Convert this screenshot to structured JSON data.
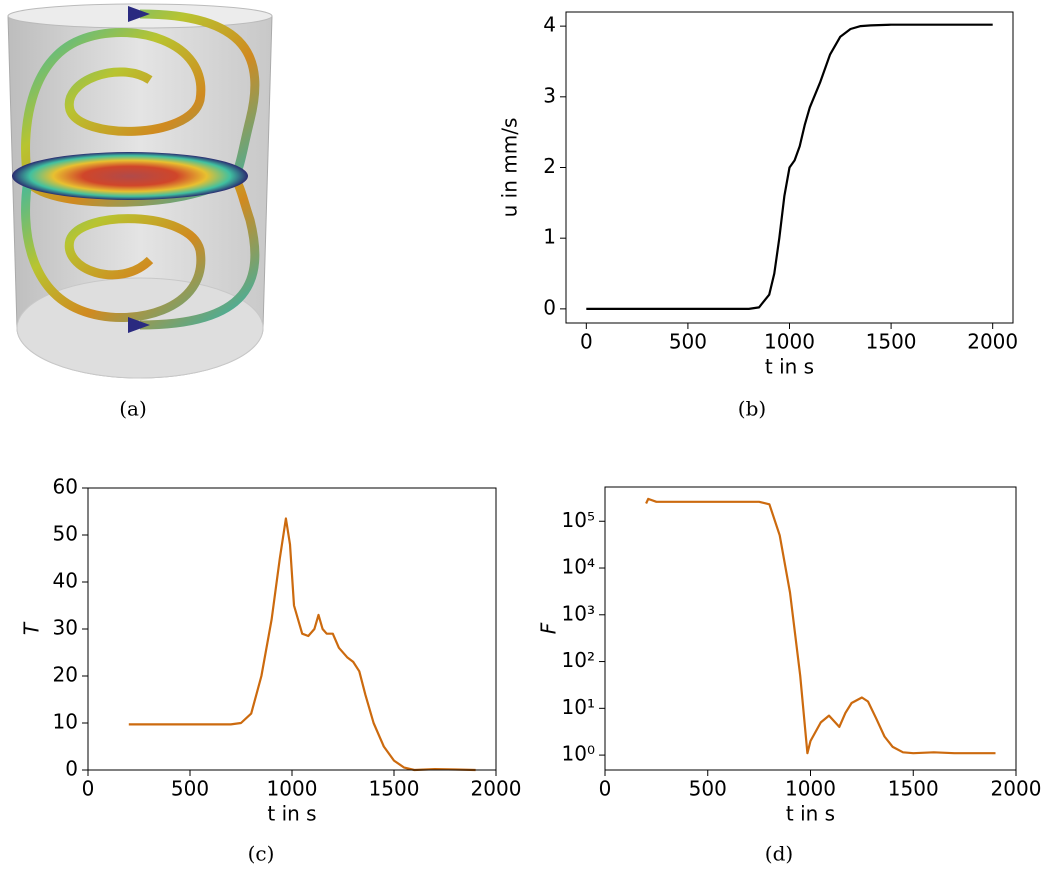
{
  "captions": [
    "(a)",
    "(b)",
    "(c)",
    "(d)"
  ],
  "chart_data": [
    {
      "type": "line",
      "xlabel": "t in s",
      "ylabel": "u in mm/s",
      "x": [
        0,
        100,
        200,
        300,
        400,
        500,
        600,
        700,
        800,
        850,
        900,
        925,
        950,
        975,
        1000,
        1025,
        1050,
        1075,
        1100,
        1150,
        1200,
        1250,
        1300,
        1350,
        1400,
        1500,
        2000
      ],
      "series": [
        {
          "color": "#000000",
          "values": [
            0,
            0,
            0,
            0,
            0,
            0,
            0,
            0,
            0,
            0.02,
            0.2,
            0.5,
            1.0,
            1.6,
            2.0,
            2.1,
            2.3,
            2.6,
            2.85,
            3.2,
            3.6,
            3.85,
            3.96,
            4.0,
            4.01,
            4.02,
            4.02
          ]
        }
      ],
      "xlim": [
        -100,
        2100
      ],
      "ylim": [
        -0.2,
        4.2
      ],
      "xticks": [
        0,
        500,
        1000,
        1500,
        2000
      ],
      "yticks": [
        0,
        1,
        2,
        3,
        4
      ]
    },
    {
      "type": "line",
      "xlabel": "t in s",
      "ylabel": "T",
      "x": [
        200,
        300,
        400,
        500,
        600,
        700,
        750,
        800,
        850,
        900,
        940,
        970,
        990,
        1010,
        1050,
        1080,
        1110,
        1130,
        1150,
        1170,
        1200,
        1230,
        1270,
        1300,
        1330,
        1360,
        1400,
        1450,
        1500,
        1550,
        1600,
        1700,
        1800,
        1900
      ],
      "series": [
        {
          "color": "#cc6a0e",
          "values": [
            9.7,
            9.7,
            9.7,
            9.7,
            9.7,
            9.7,
            10,
            12,
            20,
            32,
            45,
            53.5,
            48,
            35,
            29,
            28.5,
            30,
            33,
            30,
            29,
            29,
            26,
            24,
            23,
            21,
            16,
            10,
            5,
            2,
            0.5,
            0,
            0.2,
            0.1,
            0
          ]
        }
      ],
      "xlim": [
        0,
        2000
      ],
      "ylim": [
        0,
        60
      ],
      "xticks": [
        0,
        500,
        1000,
        1500,
        2000
      ],
      "yticks": [
        0,
        10,
        20,
        30,
        40,
        50,
        60
      ]
    },
    {
      "type": "line",
      "xlabel": "t in s",
      "ylabel": "F",
      "log_y": true,
      "x": [
        200,
        210,
        250,
        400,
        600,
        750,
        800,
        850,
        900,
        950,
        985,
        1000,
        1050,
        1090,
        1120,
        1140,
        1170,
        1200,
        1250,
        1280,
        1320,
        1360,
        1400,
        1450,
        1500,
        1600,
        1700,
        1800,
        1900
      ],
      "series": [
        {
          "color": "#cc6a0e",
          "values": [
            240000,
            300000,
            260000,
            260000,
            260000,
            260000,
            230000,
            50000,
            3000,
            50,
            1.1,
            2,
            5,
            7,
            5,
            4,
            8,
            13,
            17,
            14,
            6,
            2.5,
            1.5,
            1.15,
            1.1,
            1.15,
            1.1,
            1.1,
            1.1
          ]
        }
      ],
      "xlim": [
        0,
        2000
      ],
      "ylim": [
        0.48,
        540000
      ],
      "xticks": [
        0,
        500,
        1000,
        1500,
        2000
      ],
      "yticks": [
        {
          "value": 1,
          "label": "10⁰"
        },
        {
          "value": 10,
          "label": "10¹"
        },
        {
          "value": 100,
          "label": "10²"
        },
        {
          "value": 1000,
          "label": "10³"
        },
        {
          "value": 10000,
          "label": "10⁴"
        },
        {
          "value": 100000,
          "label": "10⁵"
        }
      ]
    }
  ]
}
